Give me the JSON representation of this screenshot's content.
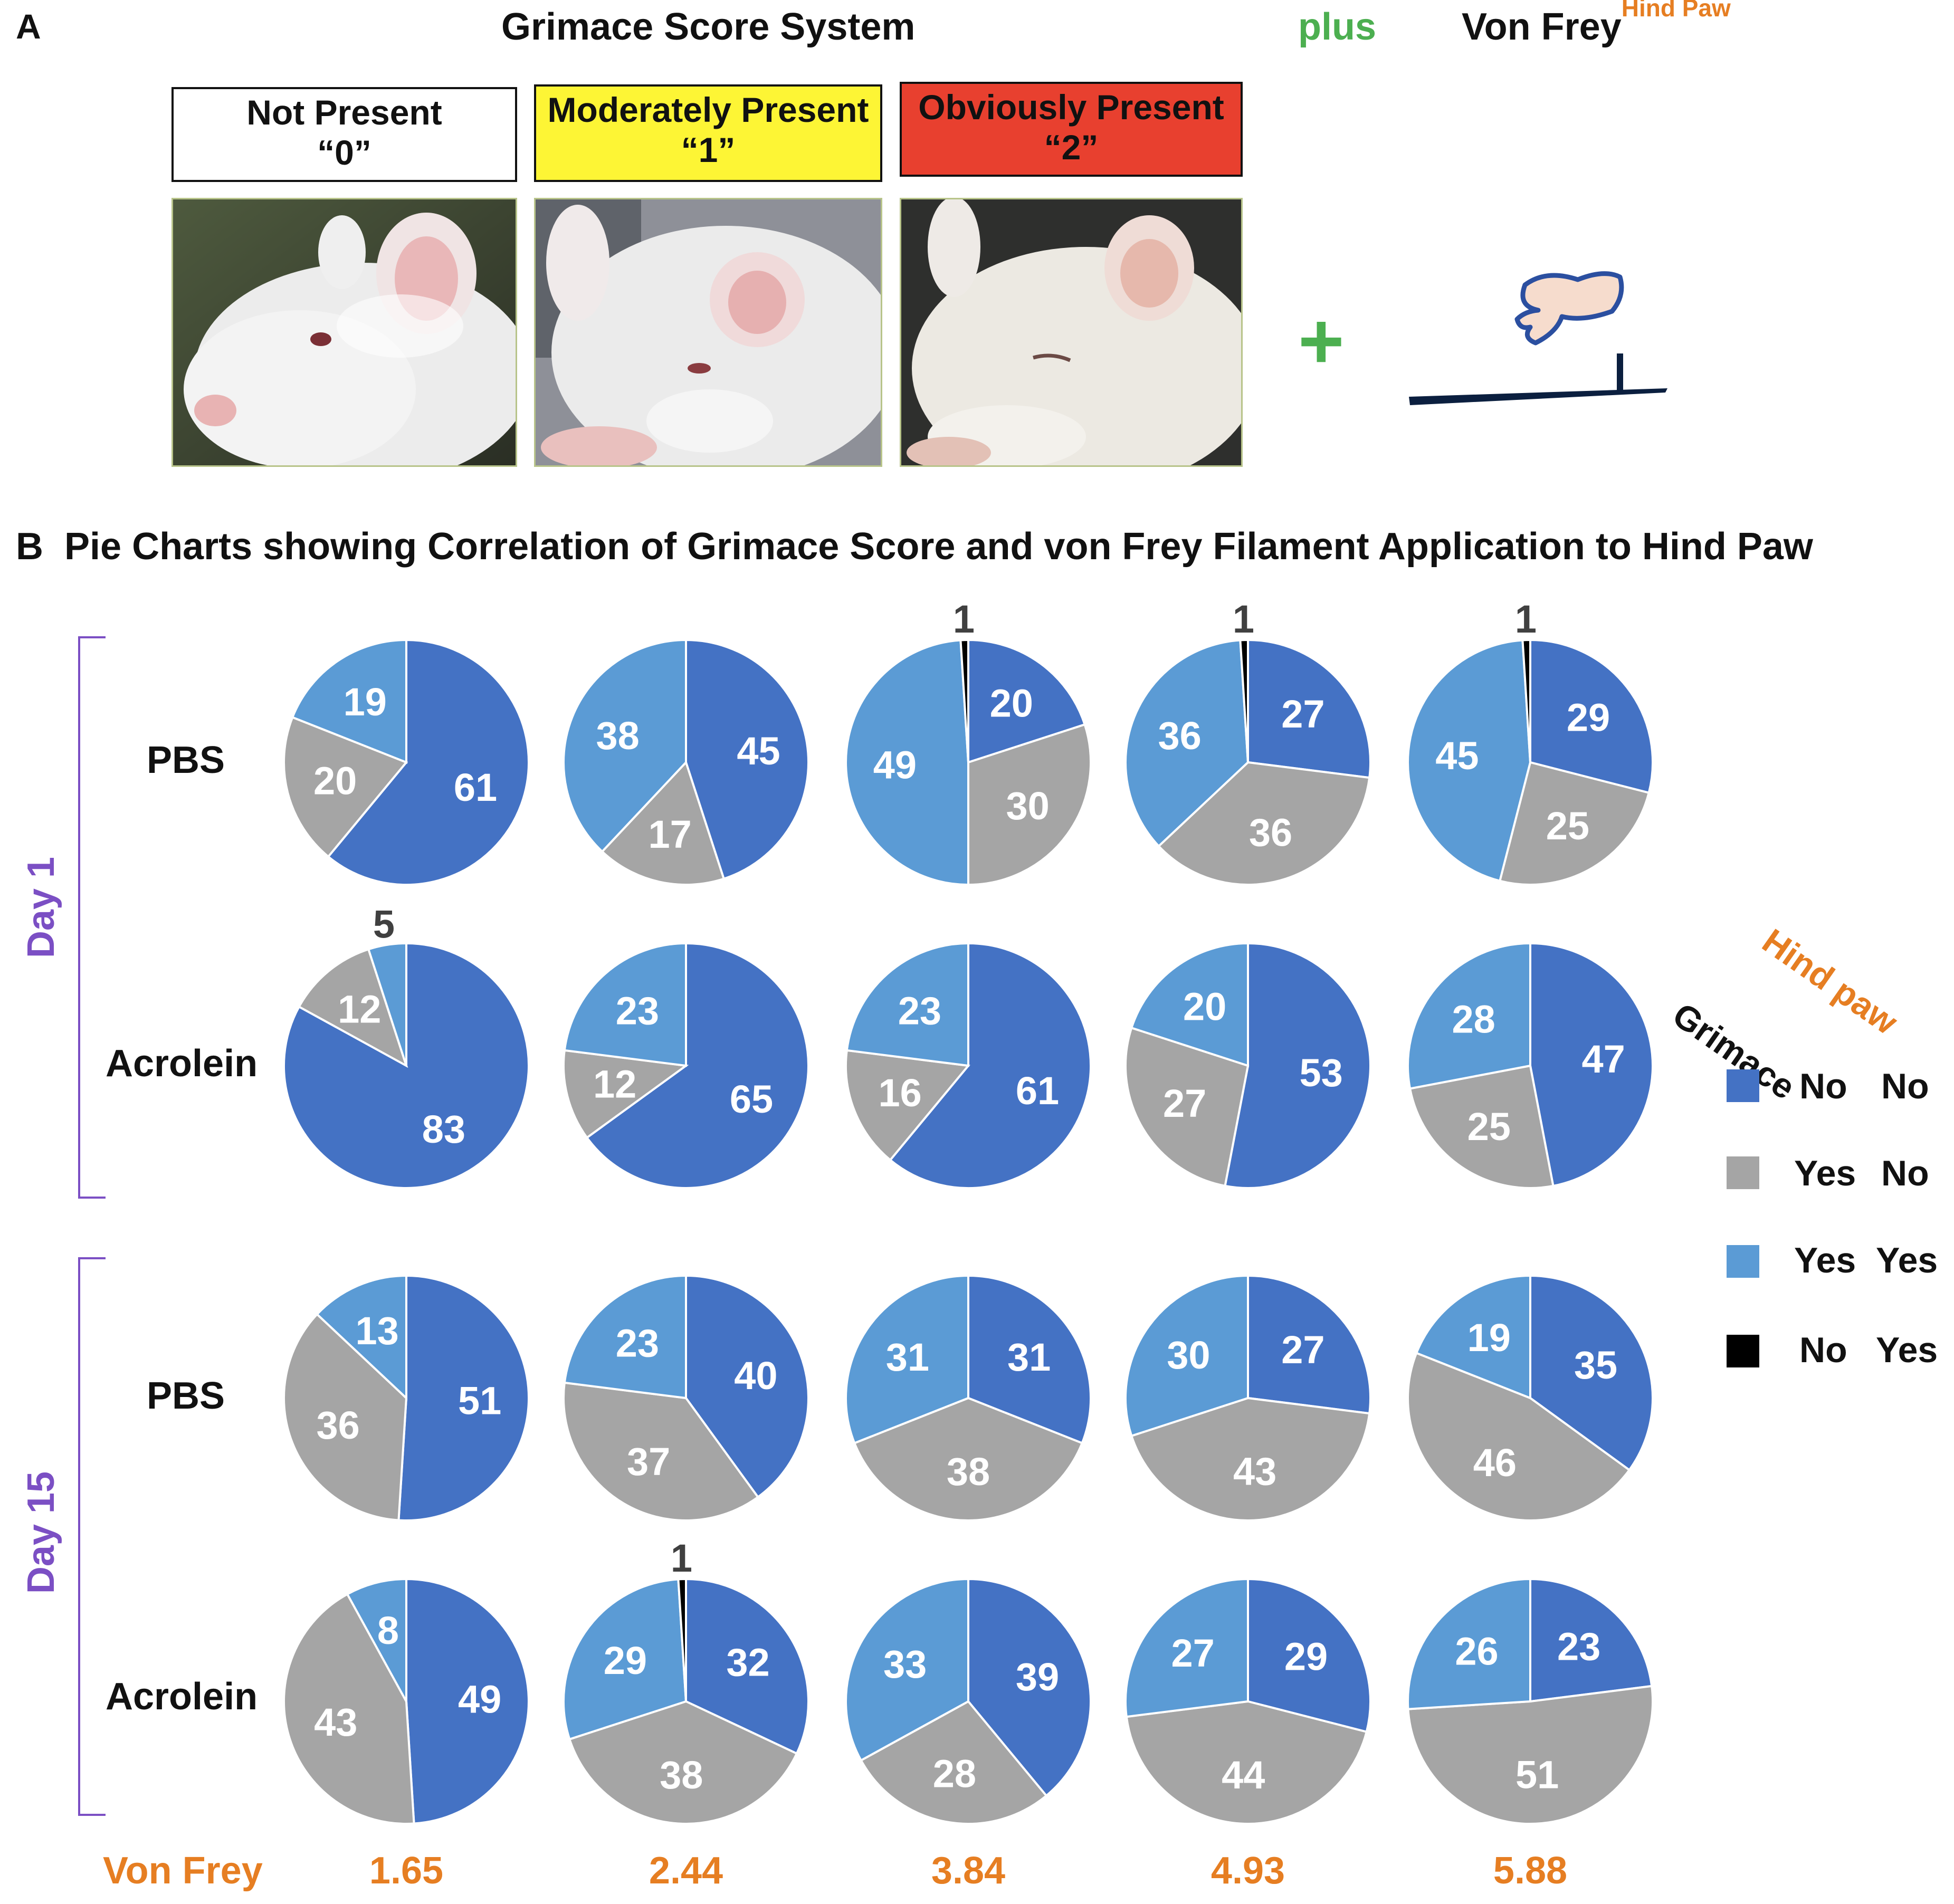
{
  "panelA": {
    "letter": "A",
    "title": "Grimace Score System",
    "plus_word": "plus",
    "vonfrey_title": "Von Frey",
    "vonfrey_superscript": "Hind Paw",
    "plus_symbol": "+",
    "scores": [
      {
        "label": "Not Present",
        "value": "“0”",
        "color": "#ffffff"
      },
      {
        "label": "Moderately Present",
        "value": "“1”",
        "color": "#fdf535"
      },
      {
        "label": "Obviously Present",
        "value": "“2”",
        "color": "#e8402f"
      }
    ]
  },
  "panelB": {
    "letter": "B",
    "title": "Pie Charts showing Correlation of Grimace Score and von Frey Filament Application to Hind Paw",
    "day_labels": [
      "Day 1",
      "Day 15"
    ],
    "row_labels": [
      "PBS",
      "Acrolein",
      "PBS",
      "Acrolein"
    ],
    "von_frey_label": "Von Frey"
  },
  "legend": {
    "header_hindpaw": "Hind paw",
    "header_grimace": "Grimace",
    "items": [
      {
        "grimace": "No",
        "hindpaw": "No",
        "color": "#4472c4"
      },
      {
        "grimace": "Yes",
        "hindpaw": "No",
        "color": "#a5a5a5"
      },
      {
        "grimace": "Yes",
        "hindpaw": "Yes",
        "color": "#5b9bd5"
      },
      {
        "grimace": "No",
        "hindpaw": "Yes",
        "color": "#000000"
      }
    ]
  },
  "colors": {
    "no_no": "#4472c4",
    "yes_no": "#a5a5a5",
    "yes_yes": "#5b9bd5",
    "no_yes": "#000000",
    "accent_orange": "#e67e22",
    "day_purple": "#7b4fc4"
  },
  "chart_data": {
    "type": "pie",
    "title": "Pie Charts showing Correlation of Grimace Score and von Frey Filament Application to Hind Paw",
    "series_order": [
      "No/No",
      "Yes/No",
      "Yes/Yes",
      "No/Yes"
    ],
    "von_frey_forces": [
      "1.65",
      "2.44",
      "3.84",
      "4.93",
      "5.88"
    ],
    "rows": [
      {
        "day": "Day 1",
        "group": "PBS",
        "pies": [
          {
            "no_no": 61,
            "yes_no": 20,
            "yes_yes": 19,
            "no_yes": 0
          },
          {
            "no_no": 45,
            "yes_no": 17,
            "yes_yes": 38,
            "no_yes": 0
          },
          {
            "no_no": 20,
            "yes_no": 30,
            "yes_yes": 49,
            "no_yes": 1
          },
          {
            "no_no": 27,
            "yes_no": 36,
            "yes_yes": 36,
            "no_yes": 1
          },
          {
            "no_no": 29,
            "yes_no": 25,
            "yes_yes": 45,
            "no_yes": 1
          }
        ]
      },
      {
        "day": "Day 1",
        "group": "Acrolein",
        "pies": [
          {
            "no_no": 83,
            "yes_no": 12,
            "yes_yes": 5,
            "no_yes": 0
          },
          {
            "no_no": 65,
            "yes_no": 12,
            "yes_yes": 23,
            "no_yes": 0
          },
          {
            "no_no": 61,
            "yes_no": 16,
            "yes_yes": 23,
            "no_yes": 0
          },
          {
            "no_no": 53,
            "yes_no": 27,
            "yes_yes": 20,
            "no_yes": 0
          },
          {
            "no_no": 47,
            "yes_no": 25,
            "yes_yes": 28,
            "no_yes": 0
          }
        ]
      },
      {
        "day": "Day 15",
        "group": "PBS",
        "pies": [
          {
            "no_no": 51,
            "yes_no": 36,
            "yes_yes": 13,
            "no_yes": 0
          },
          {
            "no_no": 40,
            "yes_no": 37,
            "yes_yes": 23,
            "no_yes": 0
          },
          {
            "no_no": 31,
            "yes_no": 38,
            "yes_yes": 31,
            "no_yes": 0
          },
          {
            "no_no": 27,
            "yes_no": 43,
            "yes_yes": 30,
            "no_yes": 0
          },
          {
            "no_no": 35,
            "yes_no": 46,
            "yes_yes": 19,
            "no_yes": 0
          }
        ]
      },
      {
        "day": "Day 15",
        "group": "Acrolein",
        "pies": [
          {
            "no_no": 49,
            "yes_no": 43,
            "yes_yes": 8,
            "no_yes": 0
          },
          {
            "no_no": 32,
            "yes_no": 38,
            "yes_yes": 29,
            "no_yes": 1
          },
          {
            "no_no": 39,
            "yes_no": 28,
            "yes_yes": 33,
            "no_yes": 0
          },
          {
            "no_no": 29,
            "yes_no": 44,
            "yes_yes": 27,
            "no_yes": 0
          },
          {
            "no_no": 23,
            "yes_no": 51,
            "yes_yes": 26,
            "no_yes": 0
          }
        ]
      }
    ]
  }
}
